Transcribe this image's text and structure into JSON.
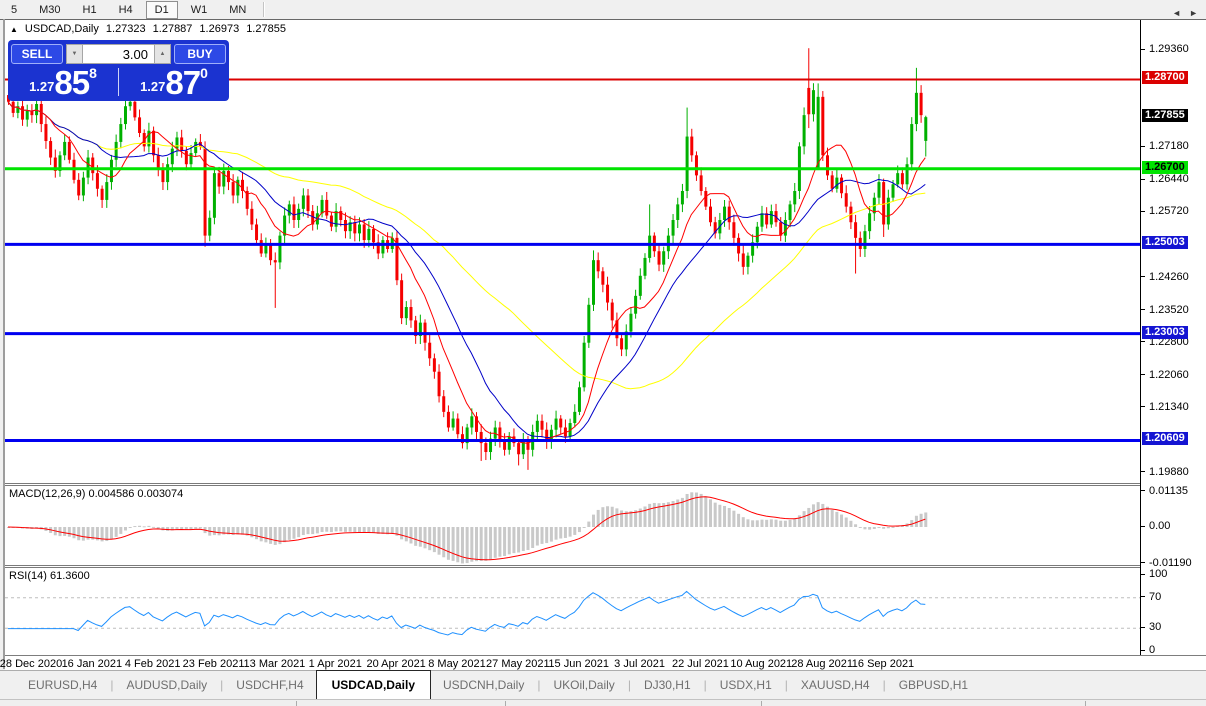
{
  "toolbar": {
    "timeframes": [
      "5",
      "M30",
      "H1",
      "H4",
      "D1",
      "W1",
      "MN"
    ],
    "active": "D1"
  },
  "header": {
    "collapse_icon": "▲",
    "symbol": "USDCAD,Daily",
    "open": "1.27323",
    "high": "1.27887",
    "low": "1.26973",
    "close": "1.27855"
  },
  "trade_panel": {
    "sell_label": "SELL",
    "buy_label": "BUY",
    "volume": "3.00",
    "volume_down_icon": "▼",
    "volume_up_icon": "▲",
    "sell_price_small": "1.27",
    "sell_price_big": "85",
    "sell_price_sup": "8",
    "buy_price_small": "1.27",
    "buy_price_big": "87",
    "buy_price_sup": "0",
    "panel_color": "#1B33D0"
  },
  "price_axis": {
    "plain": [
      {
        "text": "1.29360",
        "value": 1.2936
      },
      {
        "text": "1.27180",
        "value": 1.2718
      },
      {
        "text": "1.26440",
        "value": 1.2644
      },
      {
        "text": "1.25720",
        "value": 1.2572
      },
      {
        "text": "1.24260",
        "value": 1.2426
      },
      {
        "text": "1.23520",
        "value": 1.2352
      },
      {
        "text": "1.22800",
        "value": 1.228
      },
      {
        "text": "1.22060",
        "value": 1.2206
      },
      {
        "text": "1.21340",
        "value": 1.2134
      },
      {
        "text": "1.19880",
        "value": 1.1988
      }
    ],
    "highlight": [
      {
        "text": "1.28700",
        "value": 1.287,
        "bg": "#DB0000",
        "fg": "#FFFFFF"
      },
      {
        "text": "1.27855",
        "value": 1.27855,
        "bg": "#000000",
        "fg": "#FFFFFF"
      },
      {
        "text": "1.26700",
        "value": 1.267,
        "bg": "#00E400",
        "fg": "#000000"
      },
      {
        "text": "1.25003",
        "value": 1.25003,
        "bg": "#1414D2",
        "fg": "#FFFFFF"
      },
      {
        "text": "1.23003",
        "value": 1.23003,
        "bg": "#1414D2",
        "fg": "#FFFFFF"
      },
      {
        "text": "1.20609",
        "value": 1.20609,
        "bg": "#1414D2",
        "fg": "#FFFFFF"
      }
    ]
  },
  "macd_panel": {
    "label": "MACD(12,26,9) 0.004586 0.003074",
    "axis": [
      {
        "text": "0.01135",
        "value": 0.01135
      },
      {
        "text": "0.00",
        "value": 0
      },
      {
        "text": "-0.01190",
        "value": -0.0119
      }
    ]
  },
  "rsi_panel": {
    "label": "RSI(14) 61.3600",
    "axis": [
      {
        "text": "100",
        "value": 100
      },
      {
        "text": "70",
        "value": 70
      },
      {
        "text": "30",
        "value": 30
      },
      {
        "text": "0",
        "value": 0
      }
    ],
    "level_lines": [
      70,
      30
    ]
  },
  "date_axis": [
    "28 Dec 2020",
    "16 Jan 2021",
    "4 Feb 2021",
    "23 Feb 2021",
    "13 Mar 2021",
    "1 Apr 2021",
    "20 Apr 2021",
    "8 May 2021",
    "27 May 2021",
    "15 Jun 2021",
    "3 Jul 2021",
    "22 Jul 2021",
    "10 Aug 2021",
    "28 Aug 2021",
    "16 Sep 2021"
  ],
  "tabs": {
    "items": [
      "EURUSD,H4",
      "AUDUSD,Daily",
      "USDCHF,H4",
      "USDCAD,Daily",
      "USDCNH,Daily",
      "UKOil,Daily",
      "DJ30,H1",
      "USDX,H1",
      "XAUUSD,H4",
      "GBPUSD,H1"
    ],
    "active": "USDCAD,Daily",
    "scroll_left_icon": "◄",
    "scroll_right_icon": "►"
  },
  "chart_data": {
    "type": "candlestick",
    "symbol": "USDCAD",
    "timeframe": "Daily",
    "title": "USDCAD,Daily",
    "current_ohlc": {
      "open": 1.27323,
      "high": 1.27887,
      "low": 1.26973,
      "close": 1.27855
    },
    "x_tick_labels": [
      "28 Dec 2020",
      "16 Jan 2021",
      "4 Feb 2021",
      "23 Feb 2021",
      "13 Mar 2021",
      "1 Apr 2021",
      "20 Apr 2021",
      "8 May 2021",
      "27 May 2021",
      "15 Jun 2021",
      "3 Jul 2021",
      "22 Jul 2021",
      "10 Aug 2021",
      "28 Aug 2021",
      "16 Sep 2021"
    ],
    "y_range": [
      1.1988,
      1.2936
    ],
    "bull_color": "#00B000",
    "bear_color": "#F50000",
    "first_open": 1.2835,
    "closes": [
      1.282,
      1.2795,
      1.281,
      1.278,
      1.28,
      1.279,
      1.2815,
      1.277,
      1.2732,
      1.2695,
      1.2665,
      1.27,
      1.273,
      1.269,
      1.2645,
      1.261,
      1.265,
      1.2695,
      1.266,
      1.2625,
      1.26,
      1.264,
      1.269,
      1.273,
      1.277,
      1.281,
      1.282,
      1.2785,
      1.275,
      1.272,
      1.2755,
      1.27,
      1.267,
      1.264,
      1.268,
      1.2715,
      1.274,
      1.271,
      1.268,
      1.2705,
      1.273,
      1.272,
      1.252,
      1.256,
      1.266,
      1.263,
      1.2665,
      1.264,
      1.261,
      1.2645,
      1.262,
      1.258,
      1.2545,
      1.251,
      1.248,
      1.25,
      1.2465,
      1.246,
      1.252,
      1.2565,
      1.259,
      1.2555,
      1.258,
      1.261,
      1.2575,
      1.2545,
      1.257,
      1.26,
      1.2565,
      1.254,
      1.2575,
      1.2555,
      1.253,
      1.255,
      1.2525,
      1.2545,
      1.251,
      1.2535,
      1.2505,
      1.248,
      1.251,
      1.249,
      1.2515,
      1.242,
      1.2335,
      1.236,
      1.233,
      1.2295,
      1.2325,
      1.228,
      1.2245,
      1.2215,
      1.216,
      1.2125,
      1.209,
      1.211,
      1.2075,
      1.2055,
      1.209,
      1.2115,
      1.208,
      1.2055,
      1.2035,
      1.2065,
      1.209,
      1.206,
      1.204,
      1.207,
      1.2055,
      1.203,
      1.206,
      1.204,
      1.208,
      1.2105,
      1.2085,
      1.206,
      1.2085,
      1.211,
      1.209,
      1.207,
      1.21,
      1.2125,
      1.218,
      1.228,
      1.2365,
      1.2465,
      1.244,
      1.241,
      1.237,
      1.233,
      1.229,
      1.2265,
      1.2305,
      1.2345,
      1.2385,
      1.243,
      1.247,
      1.252,
      1.2485,
      1.2455,
      1.2485,
      1.252,
      1.2555,
      1.259,
      1.262,
      1.2742,
      1.27,
      1.2655,
      1.262,
      1.2585,
      1.255,
      1.2525,
      1.2555,
      1.2585,
      1.255,
      1.2515,
      1.248,
      1.245,
      1.2475,
      1.2505,
      1.254,
      1.257,
      1.2545,
      1.2575,
      1.255,
      1.252,
      1.2555,
      1.259,
      1.262,
      1.272,
      1.279,
      1.2792,
      1.2846,
      1.2831,
      1.27,
      1.2655,
      1.2625,
      1.265,
      1.2615,
      1.2585,
      1.255,
      1.2515,
      1.249,
      1.253,
      1.257,
      1.2605,
      1.264,
      1.2545,
      1.2605,
      1.2635,
      1.266,
      1.2635,
      1.268,
      1.277,
      1.284,
      1.279,
      1.27855
    ],
    "wick_overrides": {
      "42": {
        "o": 1.2715,
        "l": 1.2495
      },
      "57": {
        "l": 1.2358
      },
      "101": {
        "l": 1.2015
      },
      "109": {
        "l": 1.2005
      },
      "111": {
        "l": 1.1995
      },
      "125": {
        "h": 1.2487
      },
      "131": {
        "l": 1.225
      },
      "137": {
        "h": 1.259
      },
      "145": {
        "h": 1.2807
      },
      "171": {
        "o": 1.2851,
        "h": 1.294,
        "l": 1.2761
      },
      "173": {
        "o": 1.2667
      },
      "181": {
        "l": 1.2435
      },
      "187": {
        "l": 1.2517
      },
      "194": {
        "h": 1.2896
      },
      "196": {
        "o": 1.27323,
        "h": 1.27887,
        "l": 1.26973,
        "c": 1.27855
      }
    },
    "horizontal_lines": [
      {
        "price": 1.287,
        "color": "#DB0000",
        "width": 2
      },
      {
        "price": 1.267,
        "color": "#00E400",
        "width": 3
      },
      {
        "price": 1.25003,
        "color": "#0000F0",
        "width": 3
      },
      {
        "price": 1.23003,
        "color": "#0000F0",
        "width": 3
      },
      {
        "price": 1.20609,
        "color": "#0000F0",
        "width": 3
      }
    ],
    "moving_averages": [
      {
        "period": 50,
        "color": "#FFFF00"
      },
      {
        "period": 20,
        "color": "#0000C8"
      },
      {
        "period": 10,
        "color": "#FF0000"
      }
    ],
    "indicators": [
      {
        "name": "MACD",
        "params": [
          12,
          26,
          9
        ],
        "current_values": [
          0.004586,
          0.003074
        ],
        "range": [
          -0.0119,
          0.01135
        ],
        "histogram_color": "#C9C9C9",
        "signal_color": "#FF0000"
      },
      {
        "name": "RSI",
        "params": [
          14
        ],
        "current_value": 61.36,
        "range": [
          0,
          100
        ],
        "levels": [
          70,
          30
        ],
        "line_color": "#1E90FF"
      }
    ]
  }
}
